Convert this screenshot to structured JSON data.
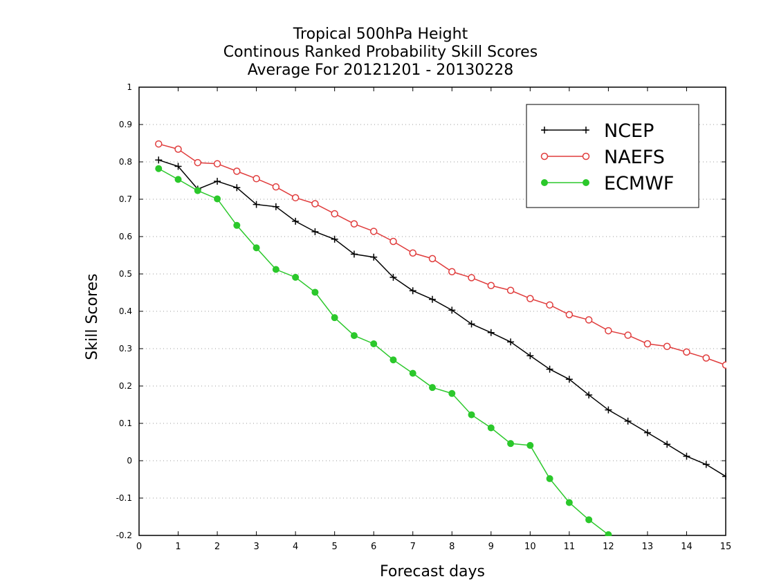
{
  "chart_data": {
    "type": "line",
    "title_lines": [
      "Tropical 500hPa Height",
      "Continous Ranked Probability Skill Scores",
      "Average For 20121201 - 20130228"
    ],
    "xlabel": "Forecast days",
    "ylabel": "Skill Scores",
    "xlim": [
      0,
      15
    ],
    "ylim": [
      -0.2,
      1
    ],
    "x_ticks": [
      "0",
      "1",
      "2",
      "3",
      "4",
      "5",
      "6",
      "7",
      "8",
      "9",
      "10",
      "11",
      "12",
      "13",
      "14",
      "15"
    ],
    "y_ticks": [
      "-0.2",
      "-0.1",
      "0",
      "0.1",
      "0.2",
      "0.3",
      "0.4",
      "0.5",
      "0.6",
      "0.7",
      "0.8",
      "0.9",
      "1"
    ],
    "grid": "horizontal-dotted",
    "legend_position": "top-right",
    "x": [
      0.5,
      1,
      1.5,
      2,
      2.5,
      3,
      3.5,
      4,
      4.5,
      5,
      5.5,
      6,
      6.5,
      7,
      7.5,
      8,
      8.5,
      9,
      9.5,
      10,
      10.5,
      11,
      11.5,
      12,
      12.5,
      13,
      13.5,
      14,
      14.5,
      15
    ],
    "series": [
      {
        "name": "NCEP",
        "color": "#000000",
        "marker": "plus",
        "values": [
          0.805,
          0.788,
          0.727,
          0.748,
          0.731,
          0.686,
          0.68,
          0.641,
          0.613,
          0.593,
          0.553,
          0.545,
          0.491,
          0.455,
          0.432,
          0.403,
          0.366,
          0.343,
          0.318,
          0.281,
          0.245,
          0.218,
          0.176,
          0.136,
          0.106,
          0.075,
          0.044,
          0.012,
          -0.01,
          -0.042
        ]
      },
      {
        "name": "NAEFS",
        "color": "#e03c3c",
        "marker": "open-circle",
        "values": [
          0.848,
          0.834,
          0.798,
          0.795,
          0.775,
          0.755,
          0.733,
          0.704,
          0.688,
          0.661,
          0.634,
          0.614,
          0.587,
          0.556,
          0.541,
          0.506,
          0.49,
          0.469,
          0.456,
          0.434,
          0.417,
          0.391,
          0.377,
          0.348,
          0.336,
          0.313,
          0.306,
          0.291,
          0.275,
          0.256
        ]
      },
      {
        "name": "ECMWF",
        "color": "#2bc82b",
        "marker": "filled-circle",
        "values": [
          0.782,
          0.753,
          0.723,
          0.701,
          0.63,
          0.57,
          0.512,
          0.491,
          0.451,
          0.383,
          0.335,
          0.313,
          0.27,
          0.234,
          0.196,
          0.18,
          0.123,
          0.088,
          0.046,
          0.041,
          -0.048,
          -0.112,
          -0.158,
          -0.198,
          null,
          null,
          null,
          null,
          null,
          null
        ]
      }
    ]
  }
}
